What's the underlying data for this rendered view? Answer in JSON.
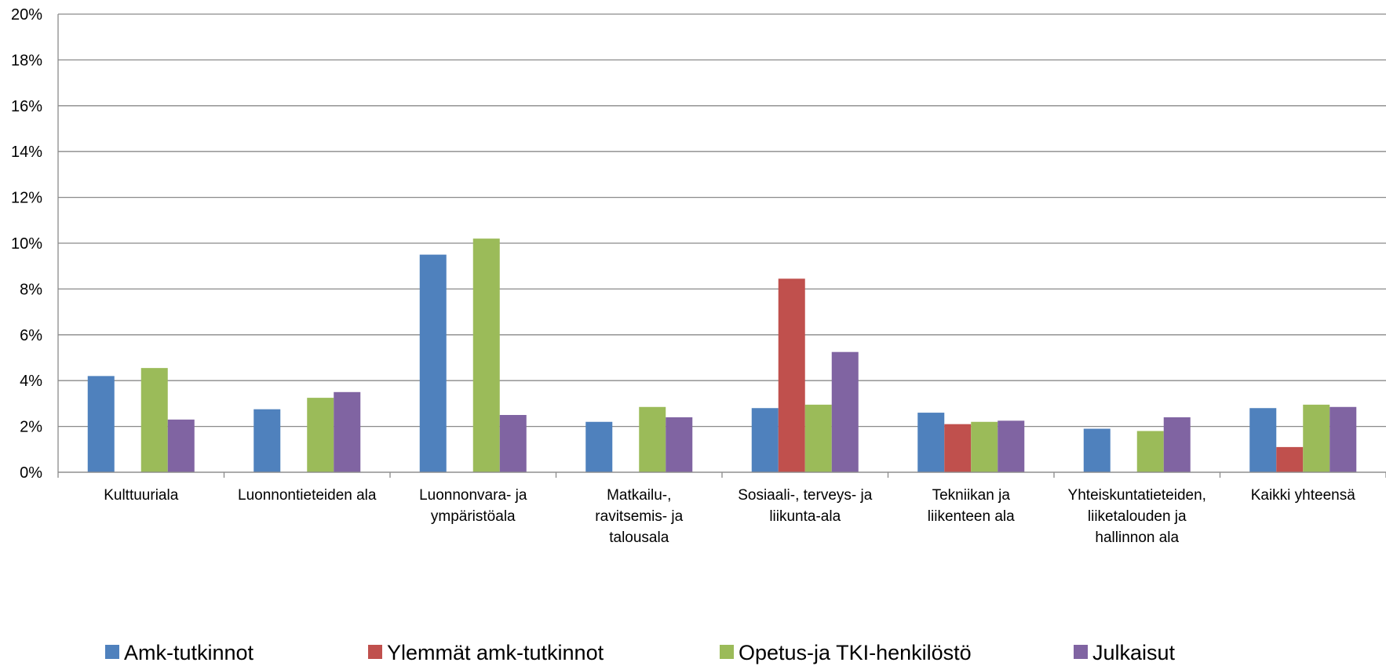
{
  "chart_data": {
    "type": "bar",
    "title": "",
    "xlabel": "",
    "ylabel": "",
    "ylim": [
      0,
      20
    ],
    "y_ticks": [
      "0%",
      "2%",
      "4%",
      "6%",
      "8%",
      "10%",
      "12%",
      "14%",
      "16%",
      "18%",
      "20%"
    ],
    "grid": true,
    "legend_position": "bottom",
    "categories": [
      [
        "Kulttuuriala"
      ],
      [
        "Luonnontieteiden ala"
      ],
      [
        "Luonnonvara- ja",
        "ympäristöala"
      ],
      [
        "Matkailu-,",
        "ravitsemis- ja",
        "talousala"
      ],
      [
        "Sosiaali-, terveys- ja",
        "liikunta-ala"
      ],
      [
        "Tekniikan ja",
        "liikenteen ala"
      ],
      [
        "Yhteiskuntatieteiden,",
        "liiketalouden ja",
        "hallinnon ala"
      ],
      [
        "Kaikki yhteensä"
      ]
    ],
    "series": [
      {
        "name": "Amk-tutkinnot",
        "color": "#4F81BD",
        "values": [
          4.2,
          2.75,
          9.5,
          2.2,
          2.8,
          2.6,
          1.9,
          2.8
        ]
      },
      {
        "name": "Ylemmät amk-tutkinnot",
        "color": "#C0504D",
        "values": [
          0,
          0,
          0,
          0,
          8.45,
          2.1,
          0,
          1.1
        ]
      },
      {
        "name": "Opetus-ja TKI-henkilöstö",
        "color": "#9BBB59",
        "values": [
          4.55,
          3.25,
          10.2,
          2.85,
          2.95,
          2.2,
          1.8,
          2.95
        ]
      },
      {
        "name": "Julkaisut",
        "color": "#8064A2",
        "values": [
          2.3,
          3.5,
          2.5,
          2.4,
          5.25,
          2.25,
          2.4,
          2.85
        ]
      }
    ]
  }
}
